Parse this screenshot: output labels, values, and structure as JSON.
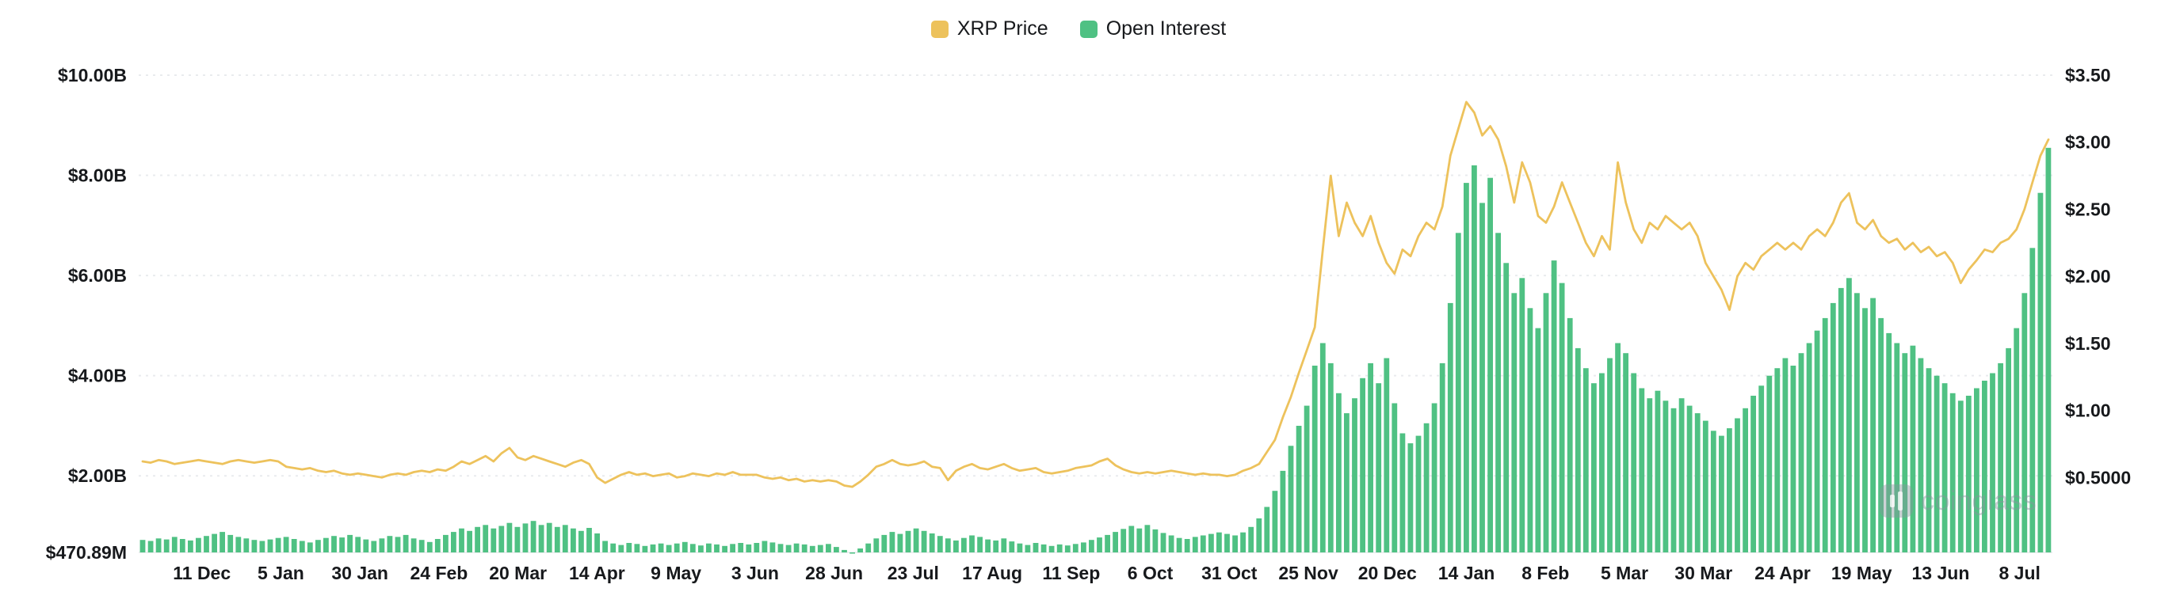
{
  "legend": {
    "items": [
      {
        "label": "XRP Price",
        "color": "#EDC25C"
      },
      {
        "label": "Open Interest",
        "color": "#4FC183"
      }
    ]
  },
  "watermark": {
    "text": "coinglass"
  },
  "chart_data": {
    "type": "combo",
    "title": "",
    "grid": "horizontal-dashed",
    "legend_position": "top-center",
    "x_tick_labels": [
      "11 Dec",
      "5 Jan",
      "30 Jan",
      "24 Feb",
      "20 Mar",
      "14 Apr",
      "9 May",
      "3 Jun",
      "28 Jun",
      "23 Jul",
      "17 Aug",
      "11 Sep",
      "6 Oct",
      "31 Oct",
      "25 Nov",
      "20 Dec",
      "14 Jan",
      "8 Feb",
      "5 Mar",
      "30 Mar",
      "24 Apr",
      "19 May",
      "13 Jun",
      "8 Jul"
    ],
    "x_tick_first_fraction": 0.033,
    "x_tick_step_fraction": 0.0413,
    "left_axis": {
      "title": "Open Interest",
      "unit": "USD",
      "min": 0.47089,
      "max": 10,
      "tick_labels": [
        "$10.00B",
        "$8.00B",
        "$6.00B",
        "$4.00B",
        "$2.00B",
        "$470.89M"
      ],
      "tick_values": [
        10,
        8,
        6,
        4,
        2,
        0.47089
      ]
    },
    "right_axis": {
      "title": "XRP Price",
      "unit": "USD",
      "min": 0,
      "max": 3.5,
      "tick_labels": [
        "$3.50",
        "$3.00",
        "$2.50",
        "$2.00",
        "$1.50",
        "$1.00",
        "$0.5000"
      ],
      "tick_values": [
        3.5,
        3.0,
        2.5,
        2.0,
        1.5,
        1.0,
        0.5
      ]
    },
    "series": [
      {
        "name": "Open Interest",
        "chart_type": "bar",
        "axis": "left",
        "color": "#4FC183",
        "values_unit": "billion USD",
        "values": [
          0.72,
          0.7,
          0.75,
          0.73,
          0.78,
          0.74,
          0.71,
          0.76,
          0.8,
          0.84,
          0.88,
          0.82,
          0.78,
          0.75,
          0.72,
          0.7,
          0.73,
          0.76,
          0.78,
          0.74,
          0.7,
          0.67,
          0.72,
          0.76,
          0.8,
          0.77,
          0.82,
          0.78,
          0.73,
          0.7,
          0.75,
          0.8,
          0.78,
          0.82,
          0.75,
          0.72,
          0.68,
          0.74,
          0.82,
          0.88,
          0.95,
          0.9,
          0.98,
          1.02,
          0.95,
          1.0,
          1.06,
          0.98,
          1.05,
          1.1,
          1.02,
          1.06,
          0.98,
          1.02,
          0.95,
          0.9,
          0.96,
          0.85,
          0.7,
          0.65,
          0.62,
          0.66,
          0.64,
          0.6,
          0.63,
          0.65,
          0.62,
          0.65,
          0.68,
          0.64,
          0.61,
          0.65,
          0.63,
          0.6,
          0.64,
          0.66,
          0.63,
          0.66,
          0.7,
          0.67,
          0.64,
          0.62,
          0.65,
          0.63,
          0.6,
          0.62,
          0.64,
          0.58,
          0.52,
          0.471,
          0.55,
          0.65,
          0.75,
          0.82,
          0.88,
          0.84,
          0.9,
          0.95,
          0.9,
          0.85,
          0.8,
          0.75,
          0.71,
          0.76,
          0.81,
          0.78,
          0.73,
          0.71,
          0.75,
          0.69,
          0.65,
          0.62,
          0.66,
          0.63,
          0.6,
          0.63,
          0.61,
          0.64,
          0.67,
          0.72,
          0.77,
          0.82,
          0.88,
          0.94,
          1.0,
          0.95,
          1.02,
          0.93,
          0.86,
          0.81,
          0.76,
          0.74,
          0.78,
          0.81,
          0.84,
          0.87,
          0.84,
          0.81,
          0.87,
          0.98,
          1.15,
          1.38,
          1.7,
          2.1,
          2.6,
          3.0,
          3.4,
          4.2,
          4.65,
          4.25,
          3.65,
          3.25,
          3.55,
          3.95,
          4.25,
          3.85,
          4.35,
          3.45,
          2.85,
          2.65,
          2.8,
          3.05,
          3.45,
          4.25,
          5.45,
          6.85,
          7.85,
          8.2,
          7.45,
          7.95,
          6.85,
          6.25,
          5.65,
          5.95,
          5.35,
          4.95,
          5.65,
          6.3,
          5.85,
          5.15,
          4.55,
          4.15,
          3.85,
          4.05,
          4.35,
          4.65,
          4.45,
          4.05,
          3.75,
          3.55,
          3.7,
          3.5,
          3.35,
          3.55,
          3.4,
          3.25,
          3.1,
          2.9,
          2.8,
          2.95,
          3.15,
          3.35,
          3.6,
          3.8,
          4.0,
          4.15,
          4.35,
          4.2,
          4.45,
          4.65,
          4.9,
          5.15,
          5.45,
          5.75,
          5.95,
          5.65,
          5.35,
          5.55,
          5.15,
          4.85,
          4.65,
          4.45,
          4.6,
          4.35,
          4.15,
          4.0,
          3.85,
          3.65,
          3.5,
          3.6,
          3.75,
          3.9,
          4.05,
          4.25,
          4.55,
          4.95,
          5.65,
          6.55,
          7.65,
          8.55
        ]
      },
      {
        "name": "XRP Price",
        "chart_type": "line",
        "axis": "right",
        "color": "#EDC25C",
        "values_unit": "USD",
        "values": [
          0.62,
          0.61,
          0.63,
          0.62,
          0.6,
          0.61,
          0.62,
          0.63,
          0.62,
          0.61,
          0.6,
          0.62,
          0.63,
          0.62,
          0.61,
          0.62,
          0.63,
          0.62,
          0.58,
          0.57,
          0.56,
          0.57,
          0.55,
          0.54,
          0.55,
          0.53,
          0.52,
          0.53,
          0.52,
          0.51,
          0.5,
          0.52,
          0.53,
          0.52,
          0.54,
          0.55,
          0.54,
          0.56,
          0.55,
          0.58,
          0.62,
          0.6,
          0.63,
          0.66,
          0.62,
          0.68,
          0.72,
          0.65,
          0.63,
          0.66,
          0.64,
          0.62,
          0.6,
          0.58,
          0.61,
          0.63,
          0.6,
          0.5,
          0.46,
          0.49,
          0.52,
          0.54,
          0.52,
          0.53,
          0.51,
          0.52,
          0.53,
          0.5,
          0.51,
          0.53,
          0.52,
          0.51,
          0.53,
          0.52,
          0.54,
          0.52,
          0.52,
          0.52,
          0.5,
          0.49,
          0.5,
          0.48,
          0.49,
          0.47,
          0.48,
          0.47,
          0.48,
          0.47,
          0.44,
          0.43,
          0.47,
          0.52,
          0.58,
          0.6,
          0.63,
          0.6,
          0.59,
          0.6,
          0.62,
          0.58,
          0.57,
          0.48,
          0.55,
          0.58,
          0.6,
          0.57,
          0.56,
          0.58,
          0.6,
          0.57,
          0.55,
          0.56,
          0.57,
          0.54,
          0.53,
          0.54,
          0.55,
          0.57,
          0.58,
          0.59,
          0.62,
          0.64,
          0.59,
          0.56,
          0.54,
          0.53,
          0.54,
          0.53,
          0.54,
          0.55,
          0.54,
          0.53,
          0.52,
          0.53,
          0.52,
          0.52,
          0.51,
          0.52,
          0.55,
          0.57,
          0.6,
          0.69,
          0.78,
          0.95,
          1.1,
          1.28,
          1.45,
          1.62,
          2.2,
          2.75,
          2.3,
          2.55,
          2.4,
          2.3,
          2.45,
          2.25,
          2.1,
          2.02,
          2.2,
          2.15,
          2.3,
          2.4,
          2.35,
          2.52,
          2.9,
          3.1,
          3.3,
          3.22,
          3.05,
          3.12,
          3.02,
          2.82,
          2.55,
          2.85,
          2.7,
          2.45,
          2.4,
          2.52,
          2.7,
          2.55,
          2.4,
          2.25,
          2.15,
          2.3,
          2.2,
          2.85,
          2.55,
          2.35,
          2.25,
          2.4,
          2.35,
          2.45,
          2.4,
          2.35,
          2.4,
          2.3,
          2.1,
          2.0,
          1.9,
          1.75,
          2.0,
          2.1,
          2.05,
          2.15,
          2.2,
          2.25,
          2.2,
          2.25,
          2.2,
          2.3,
          2.35,
          2.3,
          2.4,
          2.55,
          2.62,
          2.4,
          2.35,
          2.42,
          2.3,
          2.25,
          2.28,
          2.2,
          2.25,
          2.18,
          2.22,
          2.15,
          2.18,
          2.1,
          1.95,
          2.05,
          2.12,
          2.2,
          2.18,
          2.25,
          2.28,
          2.35,
          2.5,
          2.7,
          2.9,
          3.02
        ]
      }
    ]
  }
}
